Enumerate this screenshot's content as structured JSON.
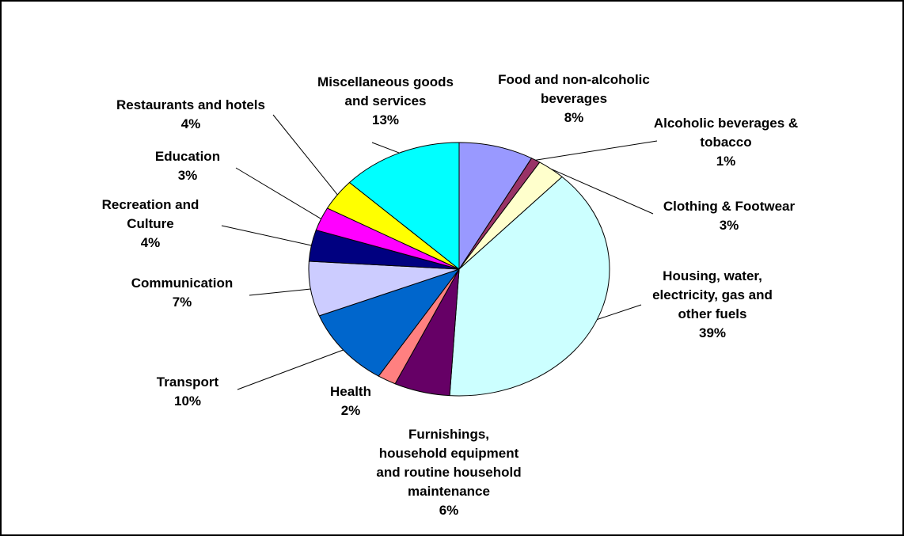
{
  "chart_data": {
    "type": "pie",
    "categories": [
      "Food and non-alcoholic beverages",
      "Alcoholic beverages & tobacco",
      "Clothing & Footwear",
      "Housing, water, electricity, gas and other fuels",
      "Furnishings, household equipment and routine household maintenance",
      "Health",
      "Transport",
      "Communication",
      "Recreation and Culture",
      "Education",
      "Restaurants and hotels",
      "Miscellaneous goods and services"
    ],
    "values": [
      8,
      1,
      3,
      39,
      6,
      2,
      10,
      7,
      4,
      3,
      4,
      13
    ],
    "value_labels": [
      "8%",
      "1%",
      "3%",
      "39%",
      "6%",
      "2%",
      "10%",
      "7%",
      "4%",
      "3%",
      "4%",
      "13%"
    ],
    "colors": [
      "#9999ff",
      "#993366",
      "#ffffcc",
      "#ccffff",
      "#660066",
      "#ff8080",
      "#0066cc",
      "#ccccff",
      "#000080",
      "#ff00ff",
      "#ffff00",
      "#00ffff"
    ]
  }
}
